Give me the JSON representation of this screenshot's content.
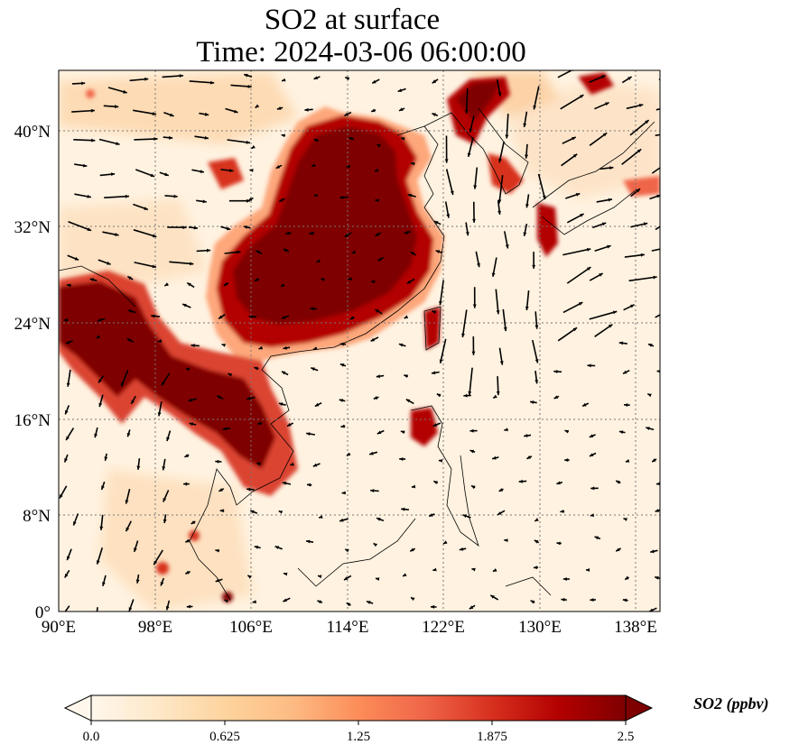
{
  "title": {
    "line1": "SO2 at surface",
    "line2": "Time: 2024-03-06 06:00:00"
  },
  "map": {
    "variable": "SO2",
    "lon_range": [
      90,
      140
    ],
    "lat_range": [
      0,
      45
    ],
    "x_ticks": [
      "90°E",
      "98°E",
      "106°E",
      "114°E",
      "122°E",
      "130°E",
      "138°E"
    ],
    "x_tick_values": [
      90,
      98,
      106,
      114,
      122,
      130,
      138
    ],
    "y_ticks": [
      "0°",
      "8°N",
      "16°N",
      "24°N",
      "32°N",
      "40°N"
    ],
    "y_tick_values": [
      0,
      8,
      16,
      24,
      32,
      40
    ],
    "gridlines": true,
    "overlay": "wind vectors"
  },
  "colorbar": {
    "title": "SO2 (ppbv)",
    "tick_labels": [
      "0.0",
      "0.625",
      "1.25",
      "1.875",
      "2.5"
    ],
    "range": [
      0,
      2.5
    ],
    "extend": "both",
    "colormap": "OrRd",
    "colors": [
      "#fff7ec",
      "#fee8c8",
      "#fdd49e",
      "#fdbb84",
      "#fc8d59",
      "#ef6548",
      "#d7301f",
      "#b30000",
      "#7f0000"
    ]
  }
}
